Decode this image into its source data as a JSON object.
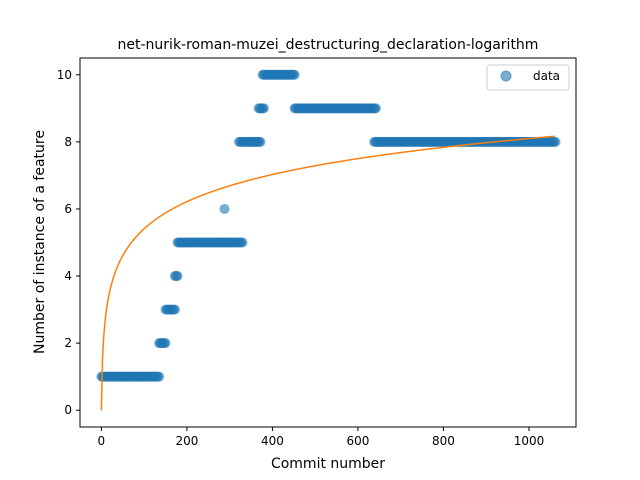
{
  "chart_data": {
    "type": "scatter",
    "title": "net-nurik-roman-muzei_destructuring_declaration-logarithm",
    "xlabel": "Commit number",
    "ylabel": "Number of instance of a feature",
    "xlim": [
      -50,
      1110
    ],
    "ylim": [
      -0.5,
      10.5
    ],
    "xticks": [
      0,
      200,
      400,
      600,
      800,
      1000
    ],
    "yticks": [
      0,
      2,
      4,
      6,
      8,
      10
    ],
    "legend": {
      "position": "top-right",
      "entries": [
        "data"
      ]
    },
    "series": [
      {
        "name": "data",
        "kind": "scatter",
        "color": "#1f77b4",
        "segments": [
          {
            "x_start": 0,
            "x_end": 135,
            "y": 1
          },
          {
            "x_start": 135,
            "x_end": 150,
            "y": 2
          },
          {
            "x_start": 150,
            "x_end": 172,
            "y": 3
          },
          {
            "x_start": 172,
            "x_end": 178,
            "y": 4
          },
          {
            "x_start": 178,
            "x_end": 288,
            "y": 5
          },
          {
            "x_start": 288,
            "x_end": 288,
            "y": 6
          },
          {
            "x_start": 290,
            "x_end": 330,
            "y": 5
          },
          {
            "x_start": 322,
            "x_end": 372,
            "y": 8
          },
          {
            "x_start": 368,
            "x_end": 380,
            "y": 9
          },
          {
            "x_start": 377,
            "x_end": 452,
            "y": 10
          },
          {
            "x_start": 452,
            "x_end": 642,
            "y": 9
          },
          {
            "x_start": 638,
            "x_end": 1062,
            "y": 8
          }
        ]
      },
      {
        "kind": "line",
        "color": "#ff7f0e",
        "model": "logarithmic",
        "coefficient": 1.1722,
        "x_range": [
          0,
          1060
        ]
      }
    ]
  }
}
